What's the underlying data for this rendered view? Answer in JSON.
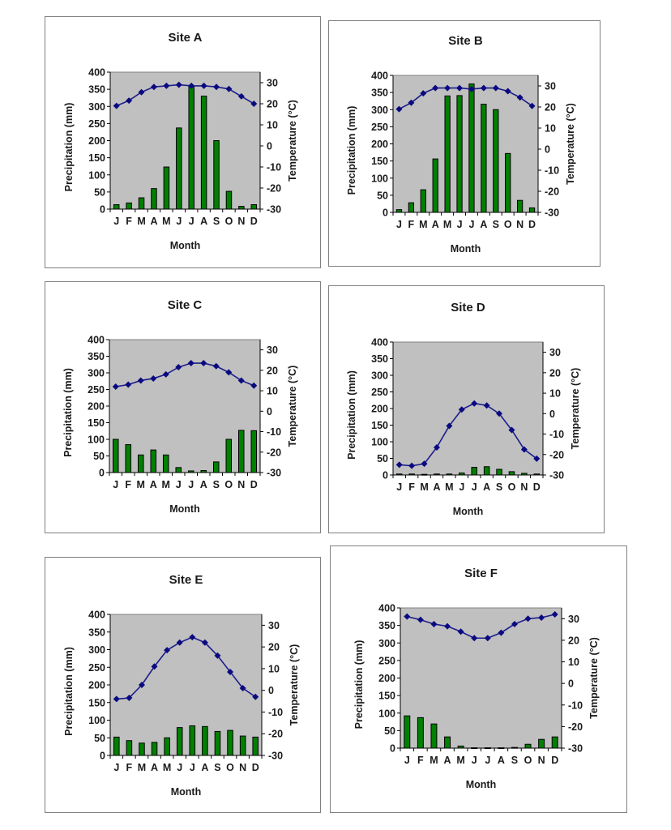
{
  "colors": {
    "precip_bar": "#008000",
    "temp_line": "#1c1c8c",
    "plot_bg": "#c0c0c0"
  },
  "chart_data": [
    {
      "type": "bar+line",
      "title": "Site A",
      "xlabel": "Month",
      "ylabel": "Precipitation (mm)",
      "y2label": "Temperature (°C)",
      "categories": [
        "J",
        "F",
        "M",
        "A",
        "M",
        "J",
        "J",
        "A",
        "S",
        "O",
        "N",
        "D"
      ],
      "ylim": [
        0,
        400
      ],
      "y2lim": [
        -30,
        35
      ],
      "yticks": [
        0,
        50,
        100,
        150,
        200,
        250,
        300,
        350,
        400
      ],
      "y2ticks": [
        -30,
        -20,
        -10,
        0,
        10,
        20,
        30
      ],
      "precipitation": [
        13,
        18,
        33,
        60,
        123,
        237,
        360,
        330,
        200,
        52,
        8,
        13
      ],
      "temperature": [
        19,
        21.5,
        25.5,
        28,
        28.5,
        29,
        28.5,
        28.5,
        28,
        27,
        23.5,
        20
      ]
    },
    {
      "type": "bar+line",
      "title": "Site B",
      "xlabel": "Month",
      "ylabel": "Precipitation (mm)",
      "y2label": "Temperature (°C)",
      "categories": [
        "J",
        "F",
        "M",
        "A",
        "M",
        "J",
        "J",
        "A",
        "S",
        "O",
        "N",
        "D"
      ],
      "ylim": [
        0,
        400
      ],
      "y2lim": [
        -30,
        35
      ],
      "yticks": [
        0,
        50,
        100,
        150,
        200,
        250,
        300,
        350,
        400
      ],
      "y2ticks": [
        -30,
        -20,
        -10,
        0,
        10,
        20,
        30
      ],
      "precipitation": [
        8,
        28,
        66,
        156,
        340,
        341,
        375,
        316,
        300,
        172,
        35,
        13
      ],
      "temperature": [
        19,
        22,
        26.5,
        29,
        29,
        29,
        28.5,
        29,
        29,
        27.5,
        24.5,
        20.5
      ]
    },
    {
      "type": "bar+line",
      "title": "Site C",
      "xlabel": "Month",
      "ylabel": "Precipitation (mm)",
      "y2label": "Temperature (°C)",
      "categories": [
        "J",
        "F",
        "M",
        "A",
        "M",
        "J",
        "J",
        "A",
        "S",
        "O",
        "N",
        "D"
      ],
      "ylim": [
        0,
        400
      ],
      "y2lim": [
        -30,
        35
      ],
      "yticks": [
        0,
        50,
        100,
        150,
        200,
        250,
        300,
        350,
        400
      ],
      "y2ticks": [
        -30,
        -20,
        -10,
        0,
        10,
        20,
        30
      ],
      "precipitation": [
        100,
        84,
        53,
        68,
        53,
        15,
        5,
        6,
        32,
        100,
        127,
        126
      ],
      "temperature": [
        12,
        13,
        15,
        16,
        18,
        21.5,
        23.5,
        23.5,
        22,
        19,
        15,
        12.5
      ]
    },
    {
      "type": "bar+line",
      "title": "Site D",
      "xlabel": "Month",
      "ylabel": "Precipitation (mm)",
      "y2label": "Temperature (°C)",
      "categories": [
        "J",
        "F",
        "M",
        "A",
        "M",
        "J",
        "J",
        "A",
        "S",
        "O",
        "N",
        "D"
      ],
      "ylim": [
        0,
        400
      ],
      "y2lim": [
        -30,
        35
      ],
      "yticks": [
        0,
        50,
        100,
        150,
        200,
        250,
        300,
        350,
        400
      ],
      "y2ticks": [
        -30,
        -20,
        -10,
        0,
        10,
        20,
        30
      ],
      "precipitation": [
        3,
        3,
        2,
        3,
        3,
        6,
        23,
        25,
        17,
        10,
        5,
        3
      ],
      "temperature": [
        -25,
        -25.5,
        -24.5,
        -16.5,
        -6,
        2,
        5,
        4,
        0,
        -8,
        -17.5,
        -22
      ]
    },
    {
      "type": "bar+line",
      "title": "Site E",
      "xlabel": "Month",
      "ylabel": "Precipitation (mm)",
      "y2label": "Temperature (°C)",
      "categories": [
        "J",
        "F",
        "M",
        "A",
        "M",
        "J",
        "J",
        "A",
        "S",
        "O",
        "N",
        "D"
      ],
      "ylim": [
        0,
        400
      ],
      "y2lim": [
        -30,
        35
      ],
      "yticks": [
        0,
        50,
        100,
        150,
        200,
        250,
        300,
        350,
        400
      ],
      "y2ticks": [
        -30,
        -20,
        -10,
        0,
        10,
        20,
        30
      ],
      "precipitation": [
        52,
        42,
        35,
        37,
        50,
        79,
        84,
        82,
        68,
        71,
        55,
        52
      ],
      "temperature": [
        -4,
        -3.5,
        2.5,
        11,
        18.5,
        22,
        24.5,
        22,
        16,
        8.5,
        1,
        -3
      ]
    },
    {
      "type": "bar+line",
      "title": "Site F",
      "xlabel": "Month",
      "ylabel": "Precipitation (mm)",
      "y2label": "Temperature (°C)",
      "categories": [
        "J",
        "F",
        "M",
        "A",
        "M",
        "J",
        "J",
        "A",
        "S",
        "O",
        "N",
        "D"
      ],
      "ylim": [
        0,
        400
      ],
      "y2lim": [
        -30,
        35
      ],
      "yticks": [
        0,
        50,
        100,
        150,
        200,
        250,
        300,
        350,
        400
      ],
      "y2ticks": [
        -30,
        -20,
        -10,
        0,
        10,
        20,
        30
      ],
      "precipitation": [
        92,
        87,
        69,
        32,
        6,
        1,
        1,
        1,
        2,
        11,
        25,
        32
      ],
      "temperature": [
        31,
        29.5,
        27.5,
        26.5,
        24,
        21,
        21,
        23.5,
        27.5,
        30,
        30.5,
        32
      ]
    }
  ]
}
